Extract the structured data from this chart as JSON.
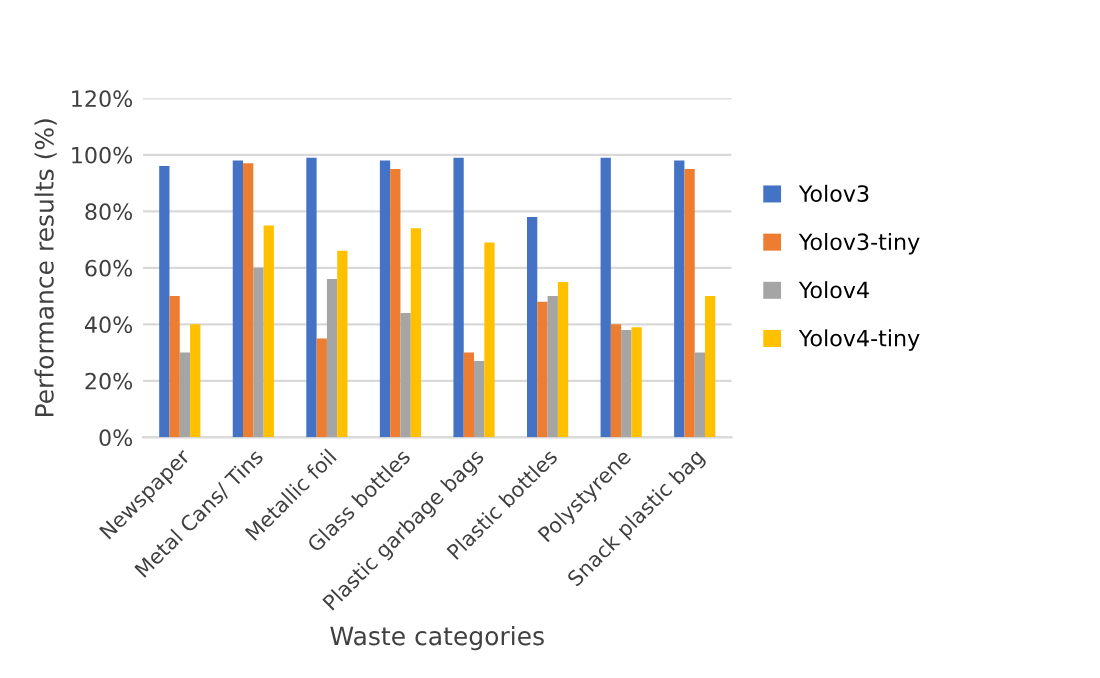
{
  "chart_data": {
    "type": "bar",
    "xlabel": "Waste categories",
    "ylabel": "Performance results (%)",
    "categories": [
      "Newspaper",
      "Metal Cans/ Tins",
      "Metallic foil",
      "Glass bottles",
      "Plastic garbage bags",
      "Plastic bottles",
      "Polystyrene",
      "Snack plastic bag"
    ],
    "series": [
      {
        "name": "Yolov3",
        "color": "#4472c4",
        "values": [
          96,
          98,
          99,
          98,
          99,
          78,
          99,
          98
        ]
      },
      {
        "name": "Yolov3-tiny",
        "color": "#ed7d31",
        "values": [
          50,
          97,
          35,
          95,
          30,
          48,
          40,
          95
        ]
      },
      {
        "name": "Yolov4",
        "color": "#a5a5a5",
        "values": [
          30,
          60,
          56,
          44,
          27,
          50,
          38,
          30
        ]
      },
      {
        "name": "Yolov4-tiny",
        "color": "#ffc000",
        "values": [
          40,
          75,
          66,
          74,
          69,
          55,
          39,
          50
        ]
      }
    ],
    "ylim": [
      0,
      120
    ],
    "yticks": [
      {
        "value": 0,
        "label": "0%"
      },
      {
        "value": 20,
        "label": "20%"
      },
      {
        "value": 40,
        "label": "40%"
      },
      {
        "value": 60,
        "label": "60%"
      },
      {
        "value": 80,
        "label": "80%"
      },
      {
        "value": 100,
        "label": "100%"
      },
      {
        "value": 120,
        "label": "120%"
      }
    ],
    "grid": "y",
    "legend": "right"
  }
}
